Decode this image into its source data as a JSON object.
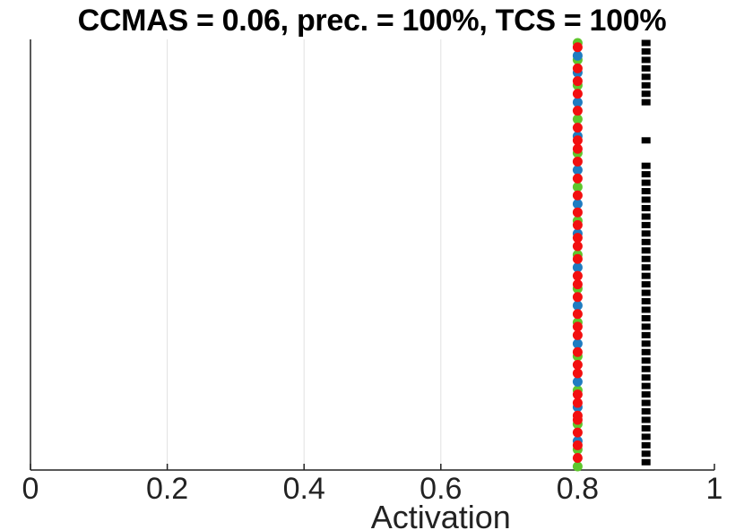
{
  "chart_data": {
    "type": "scatter",
    "title": "CCMAS = 0.06, prec. = 100%, TCS = 100%",
    "xlabel": "Activation",
    "ylabel": "",
    "xlim": [
      0,
      1
    ],
    "xticks": [
      0,
      0.2,
      0.4,
      0.6,
      0.8,
      1
    ],
    "xtick_labels": [
      "0",
      "0.2",
      "0.4",
      "0.6",
      "0.8",
      "1"
    ],
    "grid": "vertical",
    "legend": "none",
    "series": [
      {
        "color": "#000000",
        "marker": "square",
        "x": 0.9,
        "y": [
          0.01,
          0.03,
          0.05,
          0.07,
          0.09,
          0.11,
          0.13,
          0.15,
          0.17,
          0.19,
          0.21,
          0.23,
          0.25,
          0.27,
          0.29,
          0.31,
          0.33,
          0.35,
          0.37,
          0.39,
          0.41,
          0.43,
          0.45,
          0.47,
          0.49,
          0.51,
          0.53,
          0.55,
          0.57,
          0.59,
          0.61,
          0.63,
          0.65,
          0.67,
          0.69,
          0.71,
          0.77,
          0.86,
          0.88,
          0.9,
          0.92,
          0.94,
          0.96,
          0.98,
          1.0
        ]
      },
      {
        "color": "#5ec62c",
        "marker": "circle",
        "x": 0.8,
        "y": [
          0.0,
          0.04,
          0.1,
          0.18,
          0.26,
          0.34,
          0.42,
          0.5,
          0.58,
          0.66,
          0.74,
          0.82,
          0.9,
          0.96,
          1.0
        ]
      },
      {
        "color": "#1f7cc1",
        "marker": "circle",
        "x": 0.8,
        "y": [
          0.06,
          0.14,
          0.2,
          0.29,
          0.38,
          0.47,
          0.55,
          0.62,
          0.7,
          0.78,
          0.86,
          0.93,
          0.97
        ]
      },
      {
        "color": "#f20f0f",
        "marker": "circle",
        "x": 0.8,
        "y": [
          0.02,
          0.05,
          0.08,
          0.11,
          0.12,
          0.15,
          0.17,
          0.22,
          0.24,
          0.27,
          0.31,
          0.33,
          0.36,
          0.4,
          0.43,
          0.45,
          0.49,
          0.52,
          0.54,
          0.57,
          0.6,
          0.64,
          0.68,
          0.72,
          0.75,
          0.77,
          0.8,
          0.84,
          0.88,
          0.91,
          0.94,
          0.99
        ]
      }
    ]
  }
}
